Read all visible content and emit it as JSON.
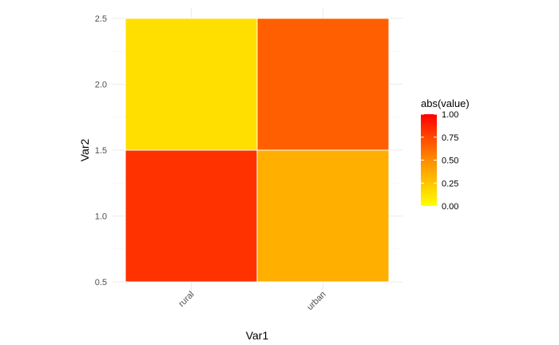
{
  "chart_data": {
    "type": "heatmap",
    "title": "",
    "xlabel": "Var1",
    "ylabel": "Var2",
    "x_categories": [
      "rural",
      "urban"
    ],
    "y_ticks": [
      "0.5",
      "1.0",
      "1.5",
      "2.0",
      "2.5"
    ],
    "ylim": [
      0.5,
      2.5
    ],
    "cells": [
      {
        "x": "rural",
        "y": 1,
        "value": 0.82
      },
      {
        "x": "urban",
        "y": 1,
        "value": 0.35
      },
      {
        "x": "rural",
        "y": 2,
        "value": 0.14
      },
      {
        "x": "urban",
        "y": 2,
        "value": 0.66
      }
    ],
    "legend": {
      "title": "abs(value)",
      "ticks": [
        "0.00",
        "0.25",
        "0.50",
        "0.75",
        "1.00"
      ],
      "placement": "right",
      "low_color": "#FFFF00",
      "mid_color": "#FF8C00",
      "high_color": "#FF0000"
    },
    "grid": true
  }
}
